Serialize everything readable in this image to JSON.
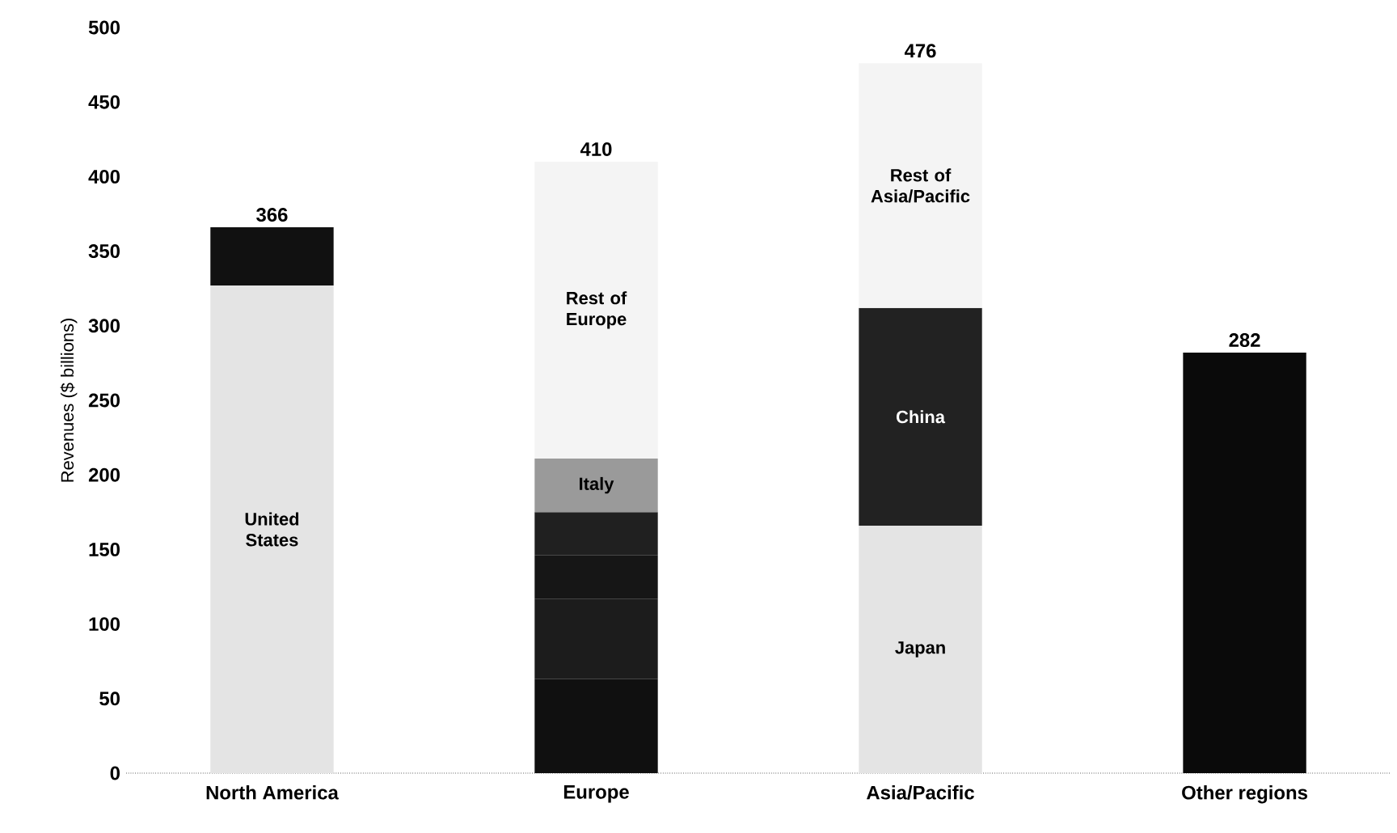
{
  "chart_data": {
    "type": "bar",
    "stacked": true,
    "ylabel": "Revenues ($ billions)",
    "categories": [
      "North America",
      "Europe",
      "Asia/Pacific",
      "Other regions"
    ],
    "series": [
      {
        "name": "United States",
        "values": [
          327,
          null,
          null,
          null
        ],
        "color": "#e4e4e4"
      },
      {
        "values": [
          39,
          null,
          null,
          null
        ],
        "color": "#111111"
      },
      {
        "values": [
          null,
          63,
          null,
          null
        ],
        "color": "#101010"
      },
      {
        "values": [
          null,
          54,
          null,
          null
        ],
        "color": "#1c1c1c"
      },
      {
        "values": [
          null,
          29,
          null,
          null
        ],
        "color": "#161616"
      },
      {
        "values": [
          null,
          29,
          null,
          null
        ],
        "color": "#202020"
      },
      {
        "name": "Italy",
        "values": [
          null,
          36,
          null,
          null
        ],
        "color": "#9a9a9a"
      },
      {
        "name": "Rest of Europe",
        "values": [
          null,
          199,
          null,
          null
        ],
        "color": "#f4f4f4"
      },
      {
        "name": "Japan",
        "values": [
          null,
          null,
          166,
          null
        ],
        "color": "#e4e4e4"
      },
      {
        "name": "China",
        "values": [
          null,
          null,
          146,
          null
        ],
        "color": "#222222"
      },
      {
        "name": "Rest of Asia/Pacific",
        "values": [
          null,
          null,
          164,
          null
        ],
        "color": "#f4f4f4"
      },
      {
        "values": [
          null,
          null,
          null,
          282
        ],
        "color": "#0a0a0a"
      }
    ],
    "totals": [
      "366",
      "410",
      "476",
      "282"
    ],
    "ylim": [
      0,
      500
    ],
    "yticks": [
      0,
      50,
      100,
      150,
      200,
      250,
      300,
      350,
      400,
      450,
      500
    ],
    "grid": false
  }
}
